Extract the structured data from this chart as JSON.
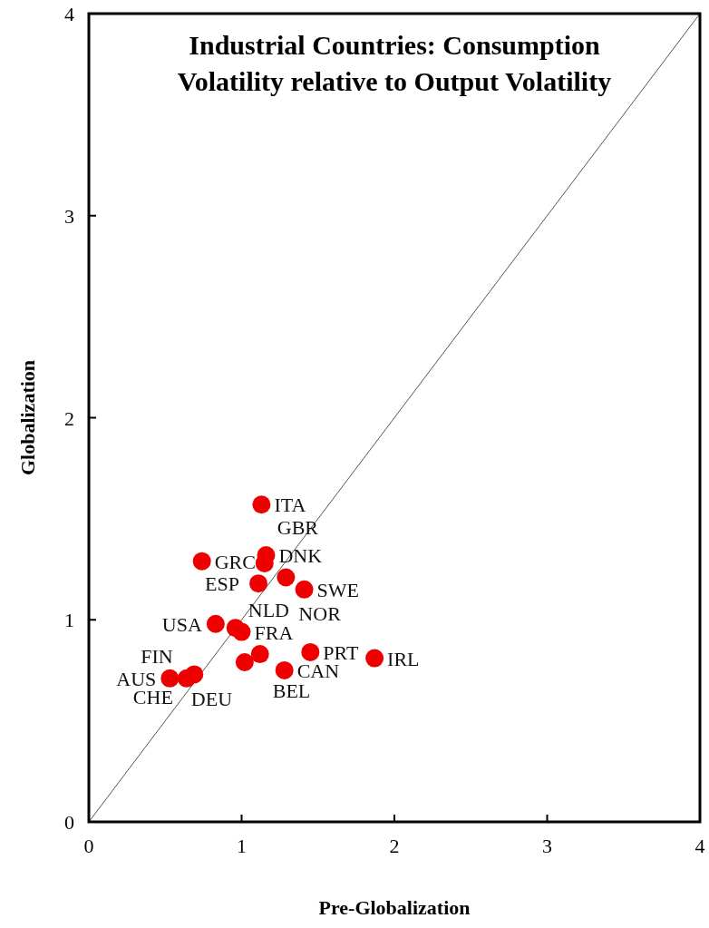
{
  "chart_data": {
    "type": "scatter",
    "title": "Industrial Countries: Consumption Volatility relative to Output Volatility",
    "xlabel": "Pre-Globalization",
    "ylabel": "Globalization",
    "xlim": [
      0,
      4
    ],
    "ylim": [
      0,
      4
    ],
    "xticks": [
      0,
      1,
      2,
      3,
      4
    ],
    "yticks": [
      0,
      1,
      2,
      3,
      4
    ],
    "grid": false,
    "marker": "circle",
    "series": [
      {
        "type": "line",
        "color": "#555555",
        "x": [
          0,
          4
        ],
        "values": [
          0,
          4
        ],
        "marker": "none"
      },
      {
        "color": "#ee0000",
        "x": [
          1.13,
          0.74,
          1.16,
          1.15,
          1.11,
          1.29,
          1.41,
          0.83,
          0.96,
          1.0,
          1.12,
          1.45,
          1.87,
          1.02,
          1.28,
          0.53,
          0.64,
          0.69
        ],
        "values": [
          1.57,
          1.29,
          1.32,
          1.28,
          1.18,
          1.21,
          1.15,
          0.98,
          0.96,
          0.94,
          0.83,
          0.84,
          0.81,
          0.79,
          0.75,
          0.71,
          0.71,
          0.73
        ]
      }
    ],
    "annotations": [
      {
        "text": "ITA",
        "x": 1.13,
        "y": 1.57
      },
      {
        "text": "GRC",
        "x": 0.74,
        "y": 1.29
      },
      {
        "text": "DNK",
        "x": 1.16,
        "y": 1.32
      },
      {
        "text": "GBR",
        "x": 1.15,
        "y": 1.28
      },
      {
        "text": "ESP",
        "x": 1.11,
        "y": 1.18
      },
      {
        "text": "NOR",
        "x": 1.29,
        "y": 1.21
      },
      {
        "text": "SWE",
        "x": 1.41,
        "y": 1.15
      },
      {
        "text": "USA",
        "x": 0.83,
        "y": 0.98
      },
      {
        "text": "NLD",
        "x": 0.96,
        "y": 0.96
      },
      {
        "text": "FRA",
        "x": 1.0,
        "y": 0.94
      },
      {
        "text": "BEL",
        "x": 1.12,
        "y": 0.83
      },
      {
        "text": "PRT",
        "x": 1.45,
        "y": 0.84
      },
      {
        "text": "IRL",
        "x": 1.87,
        "y": 0.81
      },
      {
        "text": "DEU",
        "x": 1.02,
        "y": 0.79
      },
      {
        "text": "CAN",
        "x": 1.28,
        "y": 0.75
      },
      {
        "text": "AUS",
        "x": 0.53,
        "y": 0.71
      },
      {
        "text": "CHE",
        "x": 0.64,
        "y": 0.71
      },
      {
        "text": "FIN",
        "x": 0.69,
        "y": 0.73
      }
    ]
  }
}
